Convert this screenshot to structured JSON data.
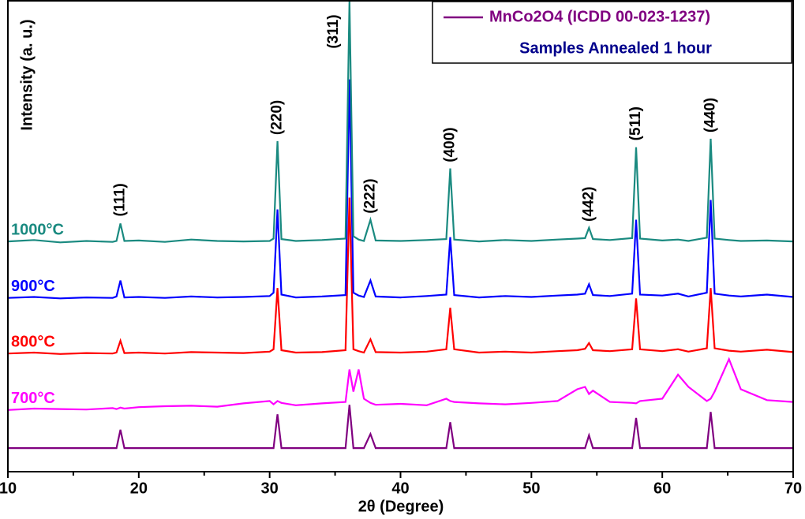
{
  "chart_data": {
    "type": "line",
    "xlabel": "2θ (Degree)",
    "ylabel": "Intensity (a. u.)",
    "legend_title": "Samples Annealed 1 hour",
    "xlim": [
      10,
      70
    ],
    "xticks": [
      10,
      20,
      30,
      40,
      50,
      60,
      70
    ],
    "xminorticks": [
      15,
      25,
      35,
      45,
      55,
      65
    ],
    "ylim": [
      0,
      100
    ],
    "x": [
      10,
      12,
      14,
      16,
      18,
      18.3,
      18.6,
      18.9,
      20,
      22,
      24,
      26,
      28,
      30,
      30.3,
      30.6,
      30.9,
      32,
      34,
      35.8,
      36.1,
      36.4,
      36.8,
      37.2,
      37.7,
      38.1,
      40,
      42,
      43.5,
      43.8,
      44.1,
      46,
      48,
      50,
      52,
      53.5,
      54.1,
      54.4,
      54.7,
      56,
      57.7,
      58,
      58.3,
      60,
      61.2,
      62,
      63.4,
      63.7,
      64,
      65.1,
      66,
      68,
      70
    ],
    "series": [
      {
        "name": "MnCo2O4 (ICDD 00-023-1237)",
        "color": "#800080",
        "in_legend": true,
        "values": [
          5,
          5,
          5,
          5,
          5,
          5,
          8.9,
          5,
          5,
          5,
          5,
          5,
          5,
          5,
          5,
          12.2,
          5,
          5,
          5,
          5,
          14.2,
          5,
          5,
          5,
          8,
          5,
          5,
          5,
          5,
          10.5,
          5,
          5,
          5,
          5,
          5,
          5,
          5,
          7.7,
          5,
          5,
          5,
          11.4,
          5,
          5,
          5,
          5,
          5,
          12.7,
          5,
          5,
          5,
          5,
          5
        ]
      },
      {
        "name": "700°C",
        "color": "#ff00ff",
        "in_legend": false,
        "values": [
          13.1,
          13.4,
          13.3,
          13.2,
          13.5,
          13.3,
          13.6,
          13.4,
          13.7,
          13.9,
          14,
          13.8,
          14.5,
          15,
          14.3,
          15,
          14.6,
          14.1,
          14.5,
          14.8,
          21.7,
          17,
          21.7,
          15.5,
          14.6,
          14.2,
          14.4,
          14.1,
          15.5,
          15,
          14.8,
          14.5,
          14.3,
          14.6,
          15,
          17.5,
          18,
          16.5,
          17.2,
          14.8,
          14.6,
          14.5,
          15,
          15.5,
          20.6,
          18,
          15,
          15.5,
          17,
          23.9,
          17.5,
          15.2,
          14.8
        ]
      },
      {
        "name": "800°C",
        "color": "#ff0000",
        "in_legend": false,
        "values": [
          25.1,
          25.3,
          25,
          25.2,
          25.1,
          25.3,
          27.8,
          25.2,
          25.3,
          25.1,
          25.4,
          25.3,
          25.2,
          25.5,
          26,
          39,
          25.8,
          25.3,
          25.4,
          25.8,
          58.2,
          26,
          25.6,
          25.3,
          28.1,
          25.4,
          25.3,
          25.5,
          26,
          34.8,
          26,
          25.3,
          25.5,
          25.3,
          25.6,
          25.8,
          26.1,
          27.3,
          25.8,
          25.6,
          26,
          36.8,
          26,
          25.6,
          26,
          25.5,
          26.2,
          39,
          26.2,
          25.7,
          25.5,
          25.9,
          25.4
        ]
      },
      {
        "name": "900°C",
        "color": "#0000ff",
        "in_legend": false,
        "values": [
          36.9,
          37.1,
          36.8,
          37,
          36.9,
          37.2,
          40.6,
          37,
          37.1,
          36.9,
          37.2,
          37,
          37.1,
          37.3,
          38,
          55.7,
          37.6,
          37,
          37.2,
          37.5,
          83.3,
          38,
          37.4,
          37.1,
          40.6,
          37.2,
          37,
          37.3,
          37.6,
          49.8,
          37.5,
          37,
          37.3,
          37.1,
          37.4,
          37.6,
          37.8,
          39.8,
          37.5,
          37.3,
          37.8,
          53.5,
          37.6,
          37.4,
          37.8,
          37.2,
          38,
          57.7,
          37.8,
          37.4,
          37.2,
          37.6,
          37.1
        ]
      },
      {
        "name": "1000°C",
        "color": "#1a8a80",
        "in_legend": false,
        "values": [
          48.9,
          49.2,
          48.7,
          49,
          48.8,
          49,
          52.7,
          49,
          49.1,
          48.8,
          49.3,
          49,
          48.9,
          49,
          49.5,
          70.2,
          49.4,
          49,
          49.2,
          49.5,
          100,
          50,
          49.3,
          49,
          53.5,
          49.1,
          49,
          49.2,
          49.4,
          64.4,
          49.3,
          48.9,
          49.2,
          49,
          49.3,
          49.5,
          49.6,
          51.8,
          49.4,
          49.2,
          49.6,
          68.9,
          49.5,
          49.1,
          49.3,
          49,
          49.7,
          70.7,
          49.5,
          49.2,
          49,
          49.1,
          48.9
        ]
      }
    ],
    "annotations": [
      {
        "text": "(111)",
        "x": 18.6
      },
      {
        "text": "(220)",
        "x": 30.6
      },
      {
        "text": "(311)",
        "x": 36.1
      },
      {
        "text": "(222)",
        "x": 37.7
      },
      {
        "text": "(400)",
        "x": 43.8
      },
      {
        "text": "(442)",
        "x": 54.4
      },
      {
        "text": "(511)",
        "x": 58
      },
      {
        "text": "(440)",
        "x": 63.7
      }
    ]
  }
}
